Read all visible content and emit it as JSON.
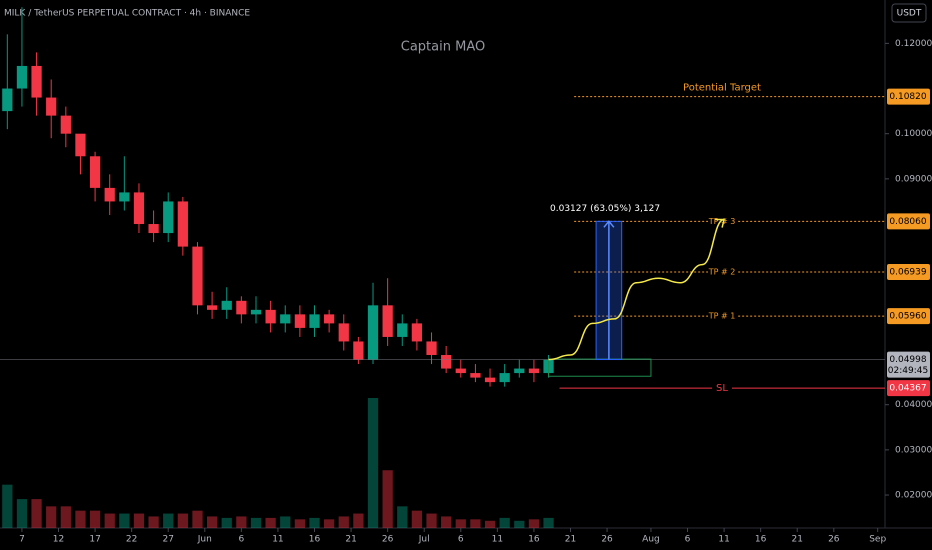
{
  "header": {
    "symbol": "MILK / TetherUS PERPETUAL CONTRACT · 4h · BINANCE",
    "currency": "USDT",
    "watermark": "Captain MAO"
  },
  "chart_data": {
    "type": "candlestick",
    "x": [
      -2,
      0,
      2,
      4,
      6,
      8,
      10,
      12,
      14,
      16,
      18,
      20,
      22,
      24,
      26,
      28,
      30,
      32,
      34,
      36,
      38,
      40,
      42,
      44,
      46,
      48,
      50,
      52,
      54,
      56,
      58,
      60,
      62,
      64,
      66,
      68,
      70,
      72
    ],
    "opens": [
      0.105,
      0.11,
      0.115,
      0.108,
      0.104,
      0.1,
      0.095,
      0.088,
      0.085,
      0.087,
      0.08,
      0.078,
      0.085,
      0.075,
      0.062,
      0.061,
      0.063,
      0.06,
      0.061,
      0.058,
      0.06,
      0.057,
      0.06,
      0.058,
      0.054,
      0.05,
      0.062,
      0.055,
      0.058,
      0.054,
      0.051,
      0.048,
      0.047,
      0.046,
      0.045,
      0.047,
      0.048,
      0.047
    ],
    "highs": [
      0.122,
      0.128,
      0.118,
      0.112,
      0.106,
      0.099,
      0.096,
      0.091,
      0.095,
      0.089,
      0.083,
      0.087,
      0.086,
      0.076,
      0.065,
      0.066,
      0.064,
      0.064,
      0.063,
      0.062,
      0.062,
      0.062,
      0.061,
      0.06,
      0.055,
      0.067,
      0.068,
      0.06,
      0.059,
      0.056,
      0.053,
      0.05,
      0.049,
      0.048,
      0.049,
      0.05,
      0.05,
      0.051
    ],
    "lows": [
      0.101,
      0.106,
      0.104,
      0.099,
      0.097,
      0.091,
      0.085,
      0.082,
      0.083,
      0.078,
      0.076,
      0.076,
      0.073,
      0.06,
      0.059,
      0.059,
      0.058,
      0.058,
      0.056,
      0.056,
      0.055,
      0.055,
      0.056,
      0.052,
      0.049,
      0.049,
      0.053,
      0.053,
      0.052,
      0.049,
      0.047,
      0.046,
      0.045,
      0.044,
      0.044,
      0.046,
      0.045,
      0.046
    ],
    "closes": [
      0.11,
      0.115,
      0.108,
      0.104,
      0.1,
      0.095,
      0.088,
      0.085,
      0.087,
      0.08,
      0.078,
      0.085,
      0.075,
      0.062,
      0.061,
      0.063,
      0.06,
      0.061,
      0.058,
      0.06,
      0.057,
      0.06,
      0.058,
      0.054,
      0.05,
      0.062,
      0.055,
      0.058,
      0.054,
      0.051,
      0.048,
      0.047,
      0.046,
      0.045,
      0.047,
      0.048,
      0.047,
      0.05
    ],
    "volumes": [
      3,
      2,
      2,
      1.5,
      1.5,
      1.2,
      1.2,
      1,
      1,
      1,
      0.8,
      1,
      1,
      1.2,
      0.8,
      0.7,
      0.8,
      0.7,
      0.7,
      0.8,
      0.6,
      0.7,
      0.6,
      0.8,
      1,
      9,
      4,
      1.5,
      1.2,
      1,
      0.8,
      0.6,
      0.6,
      0.5,
      0.7,
      0.5,
      0.6,
      0.7
    ],
    "up_color": "#089981",
    "down_color": "#f23645",
    "xlim": [
      -3,
      118
    ],
    "xticks": [
      {
        "value": 0,
        "label": "7"
      },
      {
        "value": 5,
        "label": "12"
      },
      {
        "value": 10,
        "label": "17"
      },
      {
        "value": 15,
        "label": "22"
      },
      {
        "value": 20,
        "label": "27"
      },
      {
        "value": 25,
        "label": "Jun"
      },
      {
        "value": 30,
        "label": "6"
      },
      {
        "value": 35,
        "label": "11"
      },
      {
        "value": 40,
        "label": "16"
      },
      {
        "value": 45,
        "label": "21"
      },
      {
        "value": 50,
        "label": "26"
      },
      {
        "value": 55,
        "label": "Jul"
      },
      {
        "value": 60,
        "label": "6"
      },
      {
        "value": 65,
        "label": "11"
      },
      {
        "value": 70,
        "label": "16"
      },
      {
        "value": 75,
        "label": "21"
      },
      {
        "value": 80,
        "label": "26"
      },
      {
        "value": 86,
        "label": "Aug"
      },
      {
        "value": 91,
        "label": "6"
      },
      {
        "value": 96,
        "label": "11"
      },
      {
        "value": 101,
        "label": "16"
      },
      {
        "value": 106,
        "label": "21"
      },
      {
        "value": 111,
        "label": "26"
      },
      {
        "value": 117,
        "label": "Sep"
      }
    ],
    "ylim": [
      0.0127,
      0.1296
    ],
    "yticks": [
      {
        "value": 0.02,
        "label": "0.02000"
      },
      {
        "value": 0.03,
        "label": "0.03000"
      },
      {
        "value": 0.04,
        "label": "0.04000"
      },
      {
        "value": 0.09,
        "label": "0.09000"
      },
      {
        "value": 0.1,
        "label": "0.10000"
      },
      {
        "value": 0.12,
        "label": "0.12000"
      }
    ],
    "levels": {
      "names": [
        "Potential Target",
        "TP # 3",
        "TP # 2",
        "TP # 1",
        "SL"
      ],
      "values": [
        0.1082,
        0.0806,
        0.06939,
        0.0596,
        0.04367
      ],
      "value_labels": [
        "0.10820",
        "0.08060",
        "0.06939",
        "0.05960",
        "0.04367"
      ],
      "start": [
        75.5,
        75.5,
        75.5,
        75.5,
        73.5
      ],
      "colors": [
        "#f59a23",
        "#f59a23",
        "#f59a23",
        "#f59a23",
        "#f23645"
      ]
    },
    "last_price": {
      "value": 0.04998,
      "label": "0.04998",
      "countdown": "02:49:45"
    },
    "projection": {
      "color": "#f5e94a",
      "x": [
        72,
        75,
        78,
        81,
        84,
        87,
        90,
        93,
        96
      ],
      "y": [
        0.05,
        0.051,
        0.058,
        0.059,
        0.067,
        0.068,
        0.067,
        0.071,
        0.081
      ]
    },
    "measure": {
      "x": [
        78.5,
        82
      ],
      "from": 0.05,
      "to": 0.0806,
      "label": "0.03127 (63.05%) 3,127",
      "color": "#2962ff"
    },
    "entry_zone": {
      "x": [
        72,
        86
      ],
      "y": [
        0.0463,
        0.0501
      ]
    }
  }
}
